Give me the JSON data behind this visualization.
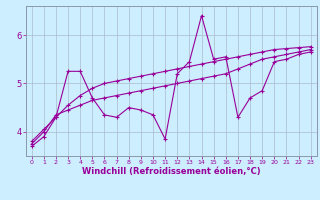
{
  "xlabel": "Windchill (Refroidissement éolien,°C)",
  "bg_color": "#cceeff",
  "line_color": "#990099",
  "grid_color": "#aabbcc",
  "xlim": [
    -0.5,
    23.5
  ],
  "ylim": [
    3.5,
    6.6
  ],
  "yticks": [
    4,
    5,
    6
  ],
  "xticks": [
    0,
    1,
    2,
    3,
    4,
    5,
    6,
    7,
    8,
    9,
    10,
    11,
    12,
    13,
    14,
    15,
    16,
    17,
    18,
    19,
    20,
    21,
    22,
    23
  ],
  "series": [
    [
      3.7,
      3.9,
      4.3,
      5.25,
      5.25,
      4.7,
      4.35,
      4.3,
      4.5,
      4.45,
      4.35,
      3.85,
      5.2,
      5.45,
      6.4,
      5.5,
      5.55,
      4.3,
      4.7,
      4.85,
      5.45,
      5.5,
      5.6,
      5.65
    ],
    [
      3.75,
      4.0,
      4.35,
      4.45,
      4.55,
      4.65,
      4.7,
      4.75,
      4.8,
      4.85,
      4.9,
      4.95,
      5.0,
      5.05,
      5.1,
      5.15,
      5.2,
      5.3,
      5.4,
      5.5,
      5.55,
      5.6,
      5.65,
      5.7
    ],
    [
      3.8,
      4.05,
      4.3,
      4.55,
      4.75,
      4.9,
      5.0,
      5.05,
      5.1,
      5.15,
      5.2,
      5.25,
      5.3,
      5.35,
      5.4,
      5.45,
      5.5,
      5.55,
      5.6,
      5.65,
      5.7,
      5.72,
      5.74,
      5.76
    ]
  ],
  "xlabel_fontsize": 6,
  "ylabel_fontsize": 6,
  "tick_fontsize_x": 4.5,
  "tick_fontsize_y": 6,
  "linewidth": 0.8,
  "markersize": 3
}
